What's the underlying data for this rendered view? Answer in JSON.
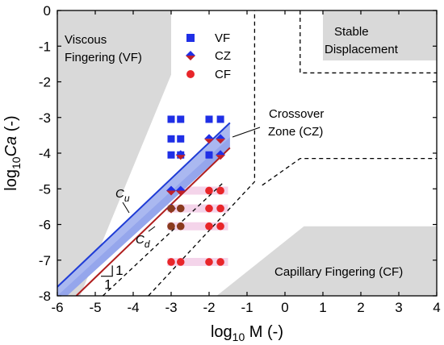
{
  "chart_data": {
    "type": "scatter",
    "xlabel": {
      "base": "log",
      "sub": "10",
      "rest": " M (-)"
    },
    "ylabel": {
      "base": "log",
      "sub": "10",
      "italic": "Ca",
      "rest": " (-)"
    },
    "xlim": [
      -6,
      4
    ],
    "ylim": [
      -8,
      0
    ],
    "xticks": [
      "-6",
      "-5",
      "-4",
      "-3",
      "-2",
      "-1",
      "0",
      "1",
      "2",
      "3",
      "4"
    ],
    "yticks": [
      "0",
      "-1",
      "-2",
      "-3",
      "-4",
      "-5",
      "-6",
      "-7",
      "-8"
    ],
    "grid": false,
    "legend_position": "top-center",
    "regions": {
      "vf": [
        "Viscous",
        "Fingering (VF)"
      ],
      "sd": [
        "Stable",
        "Displacement"
      ],
      "cf": "Capillary Fingering (CF)",
      "cz": [
        "Crossover",
        "Zone (CZ)"
      ]
    },
    "boundary_labels": {
      "cu": {
        "main": "C",
        "sub": "u"
      },
      "cd": {
        "main": "C",
        "sub": "d"
      }
    },
    "slope_labels": [
      "1",
      "1"
    ],
    "colors": {
      "vf_marker": "#1f2fe6",
      "cz_marker_top": "#1f2fe6",
      "cz_marker_bottom": "#c0202a",
      "cf_marker": "#e8262a",
      "cf_marker_dark": "#8a3a1e",
      "gray_region": "#d9d9d9",
      "crossover_band": "#aab8f0",
      "cu_line": "#1f3cd6",
      "cd_line": "#b01e1e",
      "pink_band": "#f4d4ea"
    },
    "series": [
      {
        "name": "VF",
        "marker": "square",
        "points": [
          [
            -3,
            -3.05
          ],
          [
            -2.75,
            -3.05
          ],
          [
            -2,
            -3.05
          ],
          [
            -1.7,
            -3.05
          ],
          [
            -3,
            -3.6
          ],
          [
            -2.75,
            -3.6
          ],
          [
            -3,
            -4.05
          ],
          [
            -2.75,
            -4.05
          ],
          [
            -2,
            -4.05
          ]
        ]
      },
      {
        "name": "CZ",
        "marker": "diamond",
        "points": [
          [
            -2,
            -3.6
          ],
          [
            -1.7,
            -3.6
          ],
          [
            -2.75,
            -4.05
          ],
          [
            -1.7,
            -4.05
          ],
          [
            -3,
            -5.05
          ],
          [
            -2.75,
            -5.05
          ],
          [
            -3,
            -5.55
          ]
        ]
      },
      {
        "name": "CF",
        "marker": "circle",
        "points": [
          [
            -3,
            -5.55
          ],
          [
            -2.75,
            -5.55
          ],
          [
            -3,
            -6.05
          ],
          [
            -2.75,
            -6.05
          ],
          [
            -2,
            -5.05
          ],
          [
            -1.7,
            -5.05
          ],
          [
            -2,
            -5.55
          ],
          [
            -1.7,
            -5.55
          ],
          [
            -2,
            -6.05
          ],
          [
            -1.7,
            -6.05
          ],
          [
            -3,
            -7.05
          ],
          [
            -2.75,
            -7.05
          ],
          [
            -2,
            -7.05
          ],
          [
            -1.7,
            -7.05
          ]
        ]
      }
    ],
    "cf_pink_rows": [
      -5.05,
      -5.55,
      -6.05,
      -7.05
    ]
  }
}
